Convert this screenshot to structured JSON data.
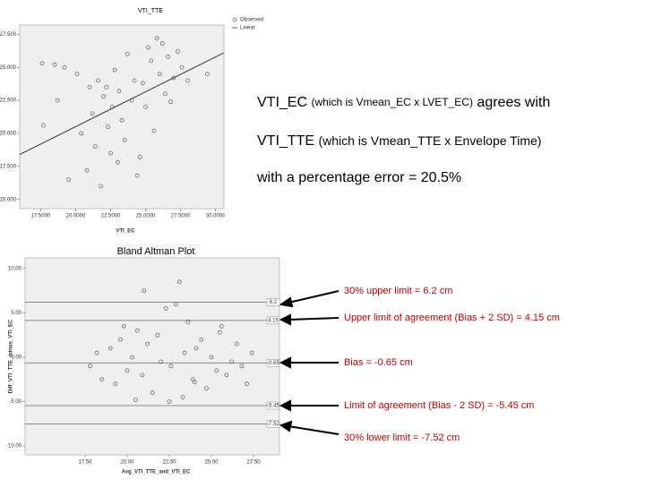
{
  "chart_data": [
    {
      "type": "scatter",
      "title": "VTI_TTE",
      "xlabel": "VTI_EC",
      "xlim": [
        16.0,
        30.6
      ],
      "ylim": [
        14.3,
        28.2
      ],
      "xticks": [
        {
          "value": 17.5,
          "label": "17.5000"
        },
        {
          "value": 20,
          "label": "20.0000"
        },
        {
          "value": 22.5,
          "label": "22.5000"
        },
        {
          "value": 25,
          "label": "25.0000"
        },
        {
          "value": 27.5,
          "label": "27.5000"
        },
        {
          "value": 30,
          "label": "30.0000"
        }
      ],
      "yticks": [
        {
          "value": 15,
          "label": "15.000"
        },
        {
          "value": 17.5,
          "label": "17.500"
        },
        {
          "value": 20,
          "label": "20.000"
        },
        {
          "value": 22.5,
          "label": "22.500"
        },
        {
          "value": 25,
          "label": "25.000"
        },
        {
          "value": 27.5,
          "label": "27.500"
        }
      ],
      "series": [
        {
          "name": "Observed",
          "color": "#555555",
          "x": [
            17.6,
            17.7,
            18.5,
            18.7,
            19.2,
            19.5,
            20.1,
            20.4,
            20.8,
            21.0,
            21.2,
            21.4,
            21.6,
            21.8,
            22.0,
            22.2,
            22.3,
            22.5,
            22.6,
            22.8,
            23.0,
            23.1,
            23.3,
            23.5,
            23.7,
            24.0,
            24.2,
            24.4,
            24.6,
            24.8,
            25.0,
            25.2,
            25.4,
            25.6,
            25.8,
            26.0,
            26.2,
            26.4,
            26.6,
            26.8,
            27.0,
            27.3,
            27.6,
            28.0,
            29.4
          ],
          "values": [
            25.3,
            20.6,
            25.2,
            22.5,
            25.0,
            16.5,
            24.5,
            20.0,
            17.2,
            23.5,
            21.5,
            19.0,
            24.0,
            16.0,
            22.8,
            23.5,
            20.5,
            18.5,
            22.0,
            24.8,
            17.8,
            23.2,
            21.0,
            19.5,
            26.0,
            22.5,
            24.0,
            16.8,
            18.2,
            23.8,
            22.0,
            26.5,
            25.5,
            20.2,
            27.2,
            24.5,
            26.8,
            23.0,
            25.8,
            22.4,
            24.2,
            26.2,
            25.0,
            24.0,
            24.5
          ]
        },
        {
          "name": "Linear",
          "color": "#333333",
          "line": true,
          "x": [
            16.0,
            30.6
          ],
          "values": [
            18.4,
            26.1
          ]
        }
      ]
    },
    {
      "type": "scatter",
      "title": "Bland Altman Plot",
      "xlabel": "Avg_VTI_TTE_and_VTI_EC",
      "ylabel": "Diff_VTI_TTE_minus_VTI_EC",
      "xlim": [
        13.94,
        29.04
      ],
      "ylim": [
        -11.0,
        11.2
      ],
      "xticks": [
        {
          "value": 17.5,
          "label": "17.50"
        },
        {
          "value": 20,
          "label": "20.00"
        },
        {
          "value": 22.5,
          "label": "22.50"
        },
        {
          "value": 25,
          "label": "25.00"
        },
        {
          "value": 27.5,
          "label": "27.50"
        }
      ],
      "yticks": [
        {
          "value": -10,
          "label": "-10.00"
        },
        {
          "value": -5,
          "label": "-5.00"
        },
        {
          "value": 0,
          "label": "0.00"
        },
        {
          "value": 5,
          "label": "5.00"
        },
        {
          "value": 10,
          "label": "10.00"
        }
      ],
      "reference_lines": [
        6.2,
        4.15,
        -0.65,
        -5.45,
        -7.52
      ],
      "series": [
        {
          "color": "#555555",
          "x": [
            17.8,
            18.2,
            18.5,
            19.0,
            19.3,
            19.6,
            20.0,
            20.3,
            20.6,
            20.9,
            21.2,
            21.5,
            21.8,
            22.0,
            22.3,
            22.6,
            22.9,
            23.1,
            23.4,
            23.6,
            23.9,
            24.1,
            24.4,
            24.7,
            25.0,
            25.3,
            25.6,
            25.9,
            26.2,
            26.5,
            26.8,
            27.1,
            27.4,
            22.5,
            23.3,
            21.0,
            24.0,
            25.5,
            20.5,
            19.8
          ],
          "values": [
            -1.0,
            0.5,
            -2.5,
            1.0,
            -3.0,
            2.0,
            -1.5,
            0.0,
            3.0,
            -2.0,
            1.5,
            -4.0,
            2.5,
            -0.5,
            5.5,
            -1.0,
            6.0,
            8.5,
            0.5,
            4.0,
            -2.5,
            1.0,
            2.0,
            -3.5,
            0.0,
            -1.5,
            3.5,
            -2.0,
            -0.5,
            1.5,
            -1.0,
            -3.0,
            0.5,
            -5.0,
            -4.5,
            7.5,
            -2.8,
            2.8,
            -4.8,
            3.5
          ]
        }
      ]
    }
  ],
  "text": {
    "line1": {
      "a": "VTI_EC ",
      "b": "(which is Vmean_EC x LVET_EC)",
      "c": " agrees with"
    },
    "line2": {
      "a": "VTI_TTE ",
      "b": "(which is Vmean_TTE x Envelope Time)"
    },
    "line3": "with a percentage error = 20.5%"
  },
  "annotations": [
    "30% upper limit =  6.2 cm",
    "Upper limit of agreement (Bias + 2 SD) =  4.15 cm",
    "Bias = -0.65 cm",
    "Limit of agreement (Bias - 2 SD) = -5.45 cm",
    "30% lower limit = -7.52 cm"
  ]
}
